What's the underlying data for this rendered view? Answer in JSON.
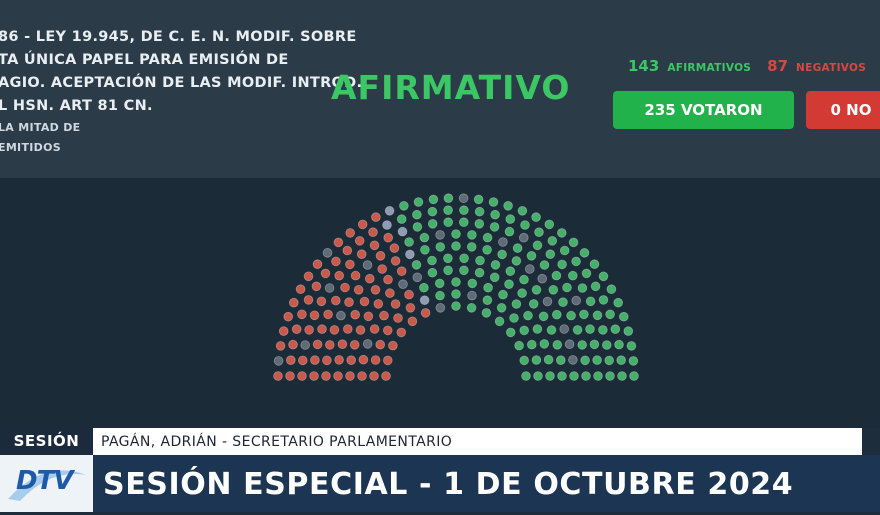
{
  "bill": {
    "lines": [
      "86 - LEY 19.945, DE C. E. N. MODIF. SOBRE",
      "TA ÚNICA PAPEL PARA EMISIÓN DE",
      "AGIO. ACEPTACIÓN DE LAS MODIF. INTROD.",
      "L HSN. ART 81 CN."
    ],
    "majority_lines": [
      "LA MITAD DE",
      "EMITIDOS"
    ]
  },
  "result": "AFIRMATIVO",
  "tally": {
    "afirmativos_count": "143",
    "afirmativos_label": "AFIRMATIVOS",
    "negativos_count": "87",
    "negativos_label": "NEGATIVOS",
    "votaron_label": "235 VOTARON",
    "no_label": "0 NO"
  },
  "chamber": {
    "total_seats": 257,
    "afirmativos": 143,
    "negativos": 87,
    "abstenciones": 5,
    "ausentes": 22
  },
  "colors": {
    "affirmative": "#44b06a",
    "negative": "#c9594b",
    "abstention": "#8f9bb0",
    "absent": "#5f6b76"
  },
  "footer": {
    "tag": "SESIÓN",
    "speaker": "PAGÁN, ADRIÁN - SECRETARIO PARLAMENTARIO",
    "title": "SESIÓN ESPECIAL - 1 DE OCTUBRE 2024",
    "logo_text": "DTV"
  }
}
